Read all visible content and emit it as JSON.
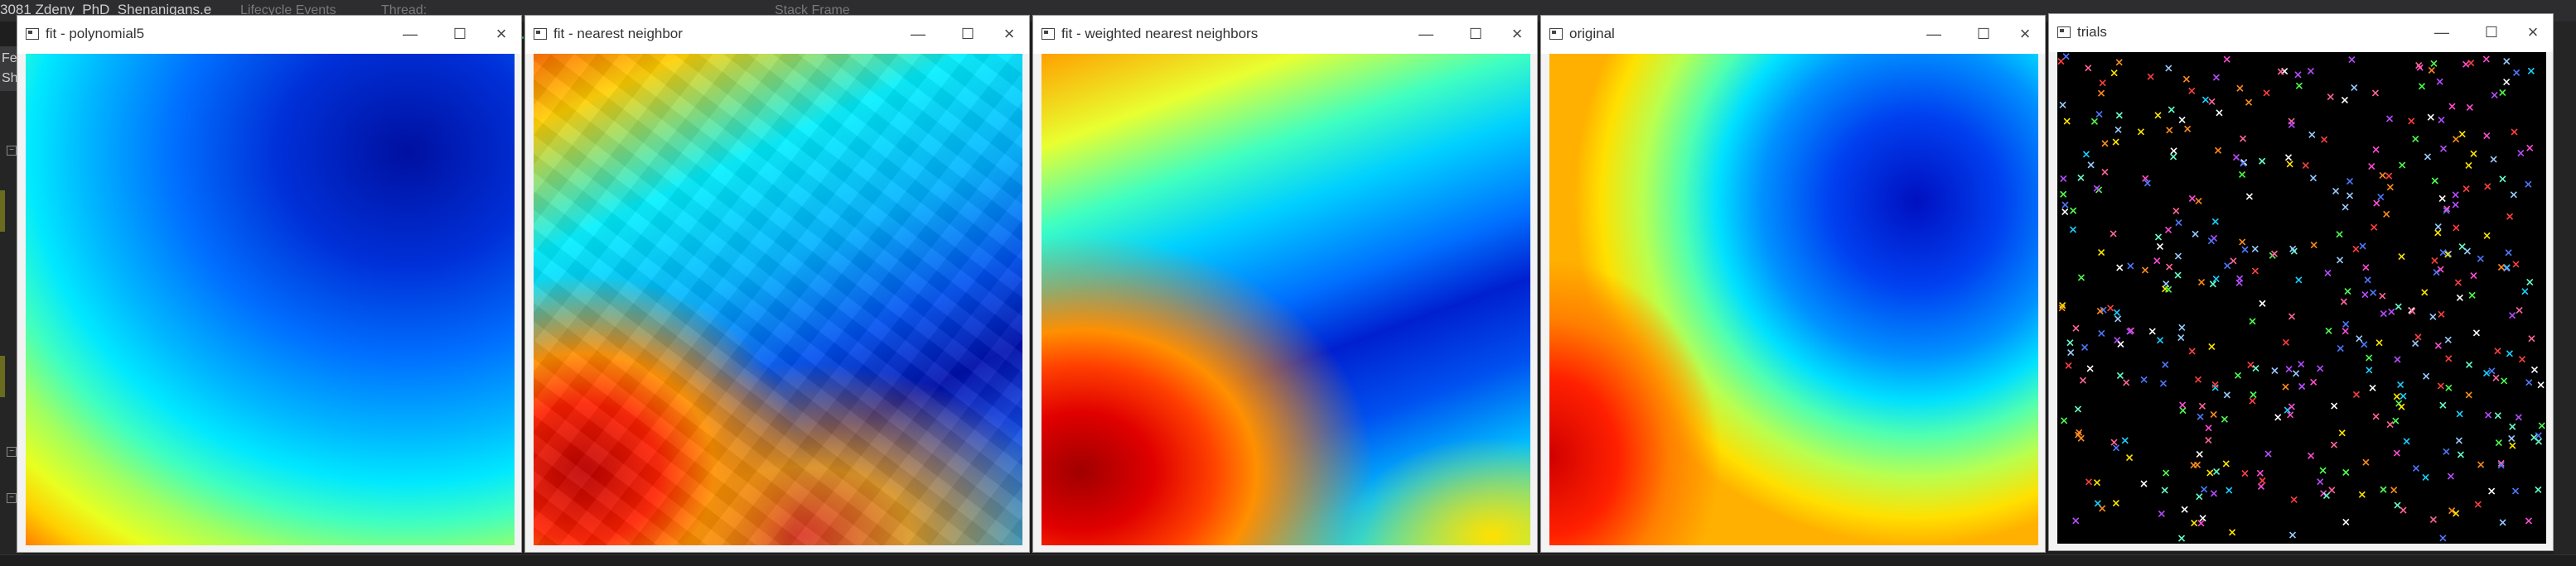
{
  "ide": {
    "title": "3081 Zdeny_PhD_Shenanigans.e",
    "lifecycle_events": "Lifecycle Events",
    "thread": "Thread:",
    "stack_frame": "Stack Frame",
    "left_label": "Fe",
    "left_label2": "Sh"
  },
  "windows": [
    {
      "title": "fit - polynomial5"
    },
    {
      "title": "fit - nearest neighbor"
    },
    {
      "title": "fit - weighted nearest neighbors"
    },
    {
      "title": "original"
    },
    {
      "title": "trials"
    }
  ],
  "colors": {
    "titlebar": "#ffffff",
    "window_border": "#9a9a9a",
    "ide_background": "#1e1e1e",
    "trials_background": "#000000"
  },
  "trial_marker": "×"
}
